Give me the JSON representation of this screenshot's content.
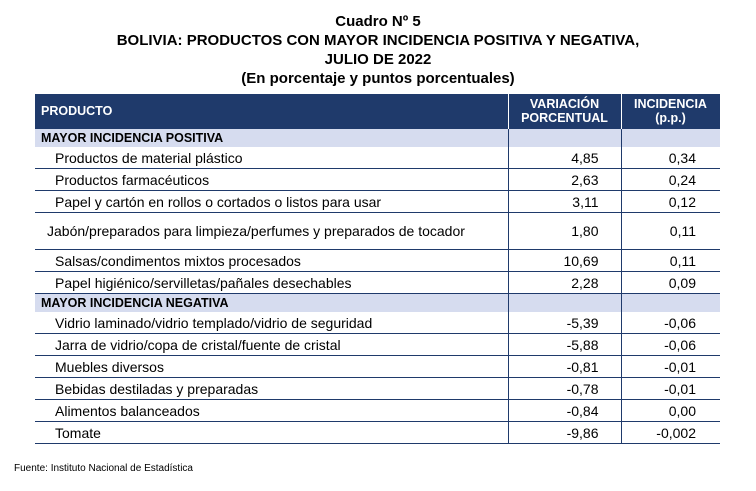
{
  "title": {
    "line1": "Cuadro Nº 5",
    "line2": "BOLIVIA: PRODUCTOS CON MAYOR INCIDENCIA POSITIVA Y NEGATIVA,",
    "line3": "JULIO DE 2022",
    "line4": "(En porcentaje y puntos porcentuales)"
  },
  "table": {
    "headers": {
      "product": "PRODUCTO",
      "variation_line1": "VARIACIÓN",
      "variation_line2": "PORCENTUAL",
      "incidence_line1": "INCIDENCIA",
      "incidence_line2": "(p.p.)"
    },
    "positive": {
      "label": "MAYOR INCIDENCIA POSITIVA",
      "rows": [
        {
          "name": "Productos de material plástico",
          "variation": "4,85",
          "incidence": "0,34"
        },
        {
          "name": "Productos farmacéuticos",
          "variation": "2,63",
          "incidence": "0,24"
        },
        {
          "name": "Papel y cartón en rollos o cortados o listos para usar",
          "variation": "3,11",
          "incidence": "0,12"
        },
        {
          "name": "Jabón/preparados para limpieza/perfumes y preparados de tocador",
          "variation": "1,80",
          "incidence": "0,11"
        },
        {
          "name": "Salsas/condimentos mixtos procesados",
          "variation": "10,69",
          "incidence": "0,11"
        },
        {
          "name": "Papel higiénico/servilletas/pañales desechables",
          "variation": "2,28",
          "incidence": "0,09"
        }
      ]
    },
    "negative": {
      "label": "MAYOR INCIDENCIA NEGATIVA",
      "rows": [
        {
          "name": "Vidrio laminado/vidrio templado/vidrio de seguridad",
          "variation": "-5,39",
          "incidence": "-0,06"
        },
        {
          "name": "Jarra de vidrio/copa de cristal/fuente de cristal",
          "variation": "-5,88",
          "incidence": "-0,06"
        },
        {
          "name": "Muebles diversos",
          "variation": "-0,81",
          "incidence": "-0,01"
        },
        {
          "name": "Bebidas destiladas y preparadas",
          "variation": "-0,78",
          "incidence": "-0,01"
        },
        {
          "name": "Alimentos balanceados",
          "variation": "-0,84",
          "incidence": "0,00"
        },
        {
          "name": "Tomate",
          "variation": "-9,86",
          "incidence": "-0,002"
        }
      ]
    }
  },
  "footer": "Fuente: Instituto Nacional de Estadística"
}
